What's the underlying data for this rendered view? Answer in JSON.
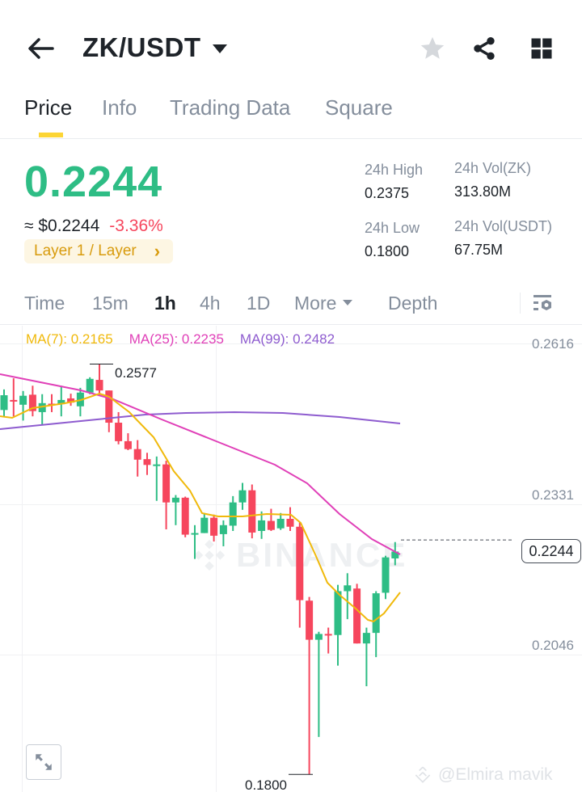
{
  "header": {
    "pair": "ZK/USDT",
    "icons": [
      "back-arrow-icon",
      "star-icon",
      "share-icon",
      "grid-icon"
    ]
  },
  "tabs": [
    {
      "label": "Price",
      "active": true
    },
    {
      "label": "Info",
      "active": false
    },
    {
      "label": "Trading Data",
      "active": false
    },
    {
      "label": "Square",
      "active": false
    }
  ],
  "ticker": {
    "last_price": "0.2244",
    "fiat_price": "≈ $0.2244",
    "change_pct": "-3.36%",
    "sector_tag": "Layer 1 / Layer",
    "sector_chevron": "›",
    "high_label": "24h High",
    "high_value": "0.2375",
    "low_label": "24h Low",
    "low_value": "0.1800",
    "vol_base_label": "24h Vol(ZK)",
    "vol_base_value": "313.80M",
    "vol_quote_label": "24h Vol(USDT)",
    "vol_quote_value": "67.75M"
  },
  "intervals": [
    {
      "label": "Time",
      "active": false
    },
    {
      "label": "15m",
      "active": false
    },
    {
      "label": "1h",
      "active": true
    },
    {
      "label": "4h",
      "active": false
    },
    {
      "label": "1D",
      "active": false
    },
    {
      "label": "More",
      "active": false
    },
    {
      "label": "Depth",
      "active": false
    }
  ],
  "chart": {
    "ma7": "MA(7): 0.2165",
    "ma25": "MA(25): 0.2235",
    "ma99": "MA(99): 0.2482",
    "axis": [
      "0.2616",
      "0.2331",
      "0.2046"
    ],
    "current_price_tag": "0.2244",
    "high_marker": "0.2577",
    "low_marker": "0.1800",
    "watermark": "BINANCE",
    "credit": "@Elmira mavik",
    "colors": {
      "up": "#2ebd85",
      "down": "#f6465d",
      "ma7": "#f0b90b",
      "ma25": "#e040b8",
      "ma99": "#8e5ccf"
    }
  },
  "chart_data": {
    "type": "candlestick",
    "title": "ZK/USDT 1h",
    "ylim": [
      0.178,
      0.2616
    ],
    "y_ticks": [
      0.2616,
      0.2331,
      0.2046
    ],
    "annotations": {
      "high": 0.2577,
      "low": 0.18,
      "last": 0.2244
    },
    "moving_averages": {
      "MA(7)": 0.2165,
      "MA(25)": 0.2235,
      "MA(99)": 0.2482
    },
    "candles": [
      {
        "o": 0.249,
        "c": 0.2518,
        "h": 0.2529,
        "l": 0.2478
      },
      {
        "o": 0.2509,
        "c": 0.2506,
        "h": 0.255,
        "l": 0.2478
      },
      {
        "o": 0.25,
        "c": 0.2517,
        "h": 0.2526,
        "l": 0.247
      },
      {
        "o": 0.2519,
        "c": 0.2488,
        "h": 0.2536,
        "l": 0.2478
      },
      {
        "o": 0.2486,
        "c": 0.2503,
        "h": 0.252,
        "l": 0.2461
      },
      {
        "o": 0.2502,
        "c": 0.2499,
        "h": 0.252,
        "l": 0.2486
      },
      {
        "o": 0.2501,
        "c": 0.2509,
        "h": 0.2536,
        "l": 0.2478
      },
      {
        "o": 0.2512,
        "c": 0.2504,
        "h": 0.2521,
        "l": 0.2498
      },
      {
        "o": 0.2497,
        "c": 0.2523,
        "h": 0.2532,
        "l": 0.2478
      },
      {
        "o": 0.2523,
        "c": 0.2549,
        "h": 0.2552,
        "l": 0.252
      },
      {
        "o": 0.2547,
        "c": 0.2527,
        "h": 0.2577,
        "l": 0.2517
      },
      {
        "o": 0.2527,
        "c": 0.2466,
        "h": 0.2527,
        "l": 0.2448
      },
      {
        "o": 0.2466,
        "c": 0.2431,
        "h": 0.2486,
        "l": 0.2425
      },
      {
        "o": 0.2431,
        "c": 0.2416,
        "h": 0.2446,
        "l": 0.2414
      },
      {
        "o": 0.2416,
        "c": 0.2396,
        "h": 0.2433,
        "l": 0.2364
      },
      {
        "o": 0.2397,
        "c": 0.2386,
        "h": 0.2409,
        "l": 0.2367
      },
      {
        "o": 0.2386,
        "c": 0.2387,
        "h": 0.2402,
        "l": 0.2318
      },
      {
        "o": 0.2387,
        "c": 0.2315,
        "h": 0.2394,
        "l": 0.2264
      },
      {
        "o": 0.2315,
        "c": 0.2324,
        "h": 0.2329,
        "l": 0.2272
      },
      {
        "o": 0.2324,
        "c": 0.2254,
        "h": 0.2326,
        "l": 0.2249
      },
      {
        "o": 0.2254,
        "c": 0.2257,
        "h": 0.2272,
        "l": 0.2208
      },
      {
        "o": 0.2257,
        "c": 0.2286,
        "h": 0.2295,
        "l": 0.2257
      },
      {
        "o": 0.2286,
        "c": 0.2252,
        "h": 0.2292,
        "l": 0.2241
      },
      {
        "o": 0.2255,
        "c": 0.2272,
        "h": 0.2281,
        "l": 0.2232
      },
      {
        "o": 0.2271,
        "c": 0.2315,
        "h": 0.2327,
        "l": 0.2261
      },
      {
        "o": 0.2315,
        "c": 0.2338,
        "h": 0.2352,
        "l": 0.2301
      },
      {
        "o": 0.2338,
        "c": 0.2258,
        "h": 0.2349,
        "l": 0.2247
      },
      {
        "o": 0.2261,
        "c": 0.2281,
        "h": 0.2298,
        "l": 0.2246
      },
      {
        "o": 0.228,
        "c": 0.2263,
        "h": 0.2303,
        "l": 0.2261
      },
      {
        "o": 0.2266,
        "c": 0.2284,
        "h": 0.2295,
        "l": 0.2263
      },
      {
        "o": 0.2284,
        "c": 0.2269,
        "h": 0.2306,
        "l": 0.2261
      },
      {
        "o": 0.2269,
        "c": 0.213,
        "h": 0.2277,
        "l": 0.2078
      },
      {
        "o": 0.2129,
        "c": 0.2055,
        "h": 0.2136,
        "l": 0.18
      },
      {
        "o": 0.2055,
        "c": 0.2066,
        "h": 0.207,
        "l": 0.1871
      },
      {
        "o": 0.2066,
        "c": 0.2064,
        "h": 0.2078,
        "l": 0.2029
      },
      {
        "o": 0.2064,
        "c": 0.2147,
        "h": 0.2159,
        "l": 0.2006
      },
      {
        "o": 0.2147,
        "c": 0.2158,
        "h": 0.2181,
        "l": 0.2094
      },
      {
        "o": 0.2152,
        "c": 0.2048,
        "h": 0.2161,
        "l": 0.2048
      },
      {
        "o": 0.2048,
        "c": 0.2068,
        "h": 0.2078,
        "l": 0.1967
      },
      {
        "o": 0.2068,
        "c": 0.2143,
        "h": 0.2147,
        "l": 0.2022
      },
      {
        "o": 0.2144,
        "c": 0.2211,
        "h": 0.2214,
        "l": 0.2132
      },
      {
        "o": 0.2209,
        "c": 0.2222,
        "h": 0.224,
        "l": 0.2196
      }
    ]
  }
}
